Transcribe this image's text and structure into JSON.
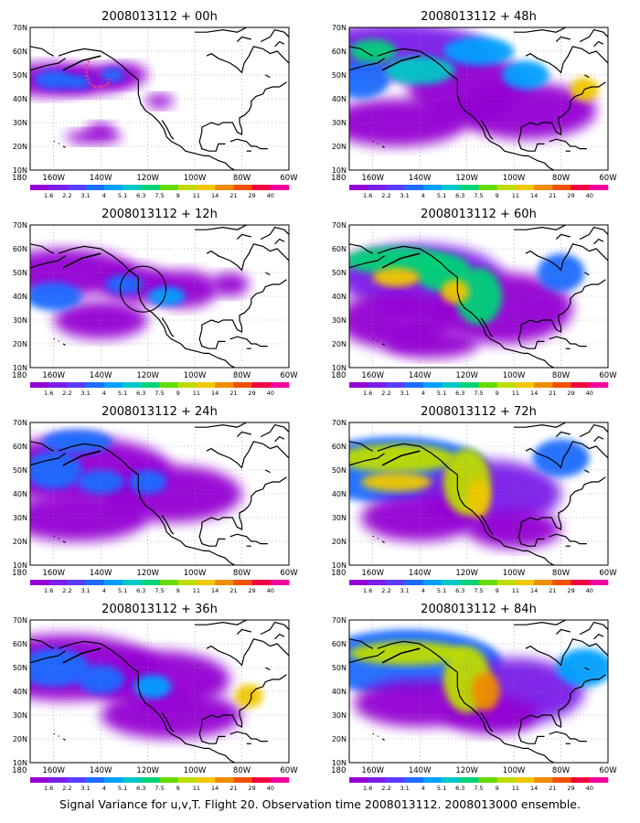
{
  "footer": "Signal Variance for u,v,T. Flight 20. Observation time 2008013112. 2008013000 ensemble.",
  "lat_labels": [
    "70N",
    "60N",
    "50N",
    "40N",
    "30N",
    "20N",
    "10N"
  ],
  "lon_labels": [
    "180",
    "160W",
    "140W",
    "120W",
    "100W",
    "80W",
    "60W"
  ],
  "colorbar": {
    "labels": [
      "1.6",
      "2.2",
      "3.1",
      "4",
      "5.1",
      "6.3",
      "7.5",
      "9",
      "11",
      "14",
      "21",
      "29",
      "40"
    ],
    "colors": [
      "#9400d3",
      "#7a1ee8",
      "#5a3cff",
      "#1e6cff",
      "#00a0ff",
      "#00c8c8",
      "#00d278",
      "#64dc00",
      "#bedc00",
      "#f0c800",
      "#f08c00",
      "#f05000",
      "#f00040",
      "#f0009c"
    ]
  },
  "panels": [
    {
      "title": "2008013112 + 00h",
      "colorbar": true
    },
    {
      "title": "2008013112 + 48h",
      "colorbar": true
    },
    {
      "title": "2008013112 + 12h",
      "colorbar": true
    },
    {
      "title": "2008013112 + 60h",
      "colorbar": true
    },
    {
      "title": "2008013112 + 24h",
      "colorbar": true
    },
    {
      "title": "2008013112 + 72h",
      "colorbar": true
    },
    {
      "title": "2008013112 + 36h",
      "colorbar": true
    },
    {
      "title": "2008013112 + 84h",
      "colorbar": true
    }
  ]
}
